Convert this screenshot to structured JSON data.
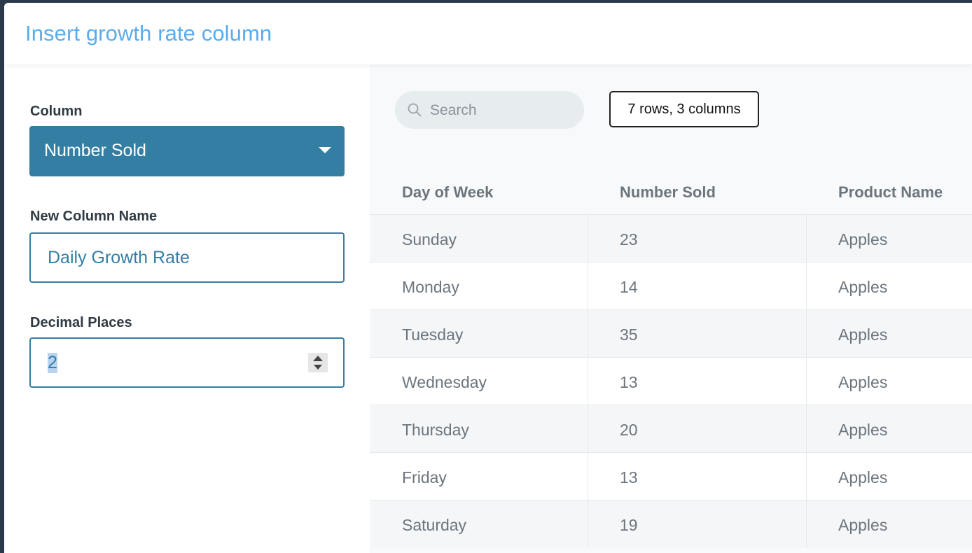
{
  "modal": {
    "title": "Insert growth rate column"
  },
  "form": {
    "column_label": "Column",
    "column_value": "Number Sold",
    "new_name_label": "New Column Name",
    "new_name_value": "Daily Growth Rate",
    "decimal_label": "Decimal Places",
    "decimal_value": "2"
  },
  "toolbar": {
    "search_placeholder": "Search",
    "row_count": "7 rows, 3 columns"
  },
  "table": {
    "headers": [
      "Day of Week",
      "Number Sold",
      "Product Name"
    ],
    "rows": [
      [
        "Sunday",
        "23",
        "Apples"
      ],
      [
        "Monday",
        "14",
        "Apples"
      ],
      [
        "Tuesday",
        "35",
        "Apples"
      ],
      [
        "Wednesday",
        "13",
        "Apples"
      ],
      [
        "Thursday",
        "20",
        "Apples"
      ],
      [
        "Friday",
        "13",
        "Apples"
      ],
      [
        "Saturday",
        "19",
        "Apples"
      ]
    ]
  },
  "colors": {
    "accent": "#337fa3",
    "title": "#5aacec"
  }
}
